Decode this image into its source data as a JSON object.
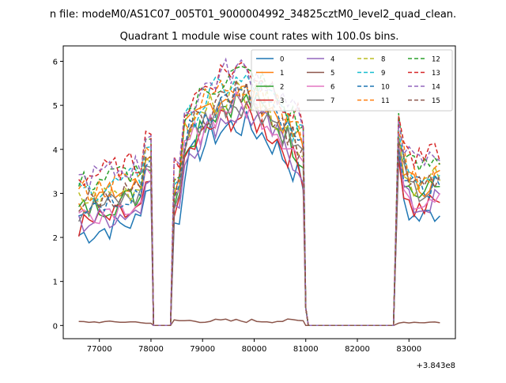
{
  "chart_data": {
    "type": "line",
    "suptitle": "n file: modeM0/AS1C07_005T01_9000004992_34825cztM0_level2_quad_clean.",
    "title": "Quadrant 1 module wise count rates with 100.0s bins.",
    "xlabel": "",
    "ylabel": "",
    "x_offset_label": "+3.843e8",
    "xlim": [
      76300,
      83900
    ],
    "ylim": [
      -0.3,
      6.35
    ],
    "xticks": [
      77000,
      78000,
      79000,
      80000,
      81000,
      82000,
      83000
    ],
    "xtick_labels": [
      "77000",
      "78000",
      "79000",
      "80000",
      "81000",
      "82000",
      "83000"
    ],
    "yticks": [
      0,
      1,
      2,
      3,
      4,
      5,
      6
    ],
    "ytick_labels": [
      "0",
      "1",
      "2",
      "3",
      "4",
      "5",
      "6"
    ],
    "grid": false,
    "legend_position": "top-right",
    "series": [
      {
        "name": "0",
        "color": "#1f77b4",
        "dash": "solid",
        "level": 2.05,
        "low": 0.0
      },
      {
        "name": "1",
        "color": "#ff7f0e",
        "dash": "solid",
        "level": 2.8,
        "low": 0.0
      },
      {
        "name": "2",
        "color": "#2ca02c",
        "dash": "solid",
        "level": 2.6,
        "low": 0.0
      },
      {
        "name": "3",
        "color": "#d62728",
        "dash": "solid",
        "level": 2.25,
        "low": 0.0
      },
      {
        "name": "4",
        "color": "#9467bd",
        "dash": "solid",
        "level": 2.3,
        "low": 0.0
      },
      {
        "name": "5",
        "color": "#8c564b",
        "dash": "solid",
        "level": 0.07,
        "low": 0.0,
        "flat": true
      },
      {
        "name": "6",
        "color": "#e377c2",
        "dash": "solid",
        "level": 2.5,
        "low": 0.0
      },
      {
        "name": "7",
        "color": "#7f7f7f",
        "dash": "solid",
        "level": 2.6,
        "low": 0.0
      },
      {
        "name": "8",
        "color": "#bcbd22",
        "dash": "dashed",
        "level": 2.8,
        "low": 0.0
      },
      {
        "name": "9",
        "color": "#17becf",
        "dash": "dashed",
        "level": 3.0,
        "low": 0.0
      },
      {
        "name": "10",
        "color": "#1f77b4",
        "dash": "dashed",
        "level": 2.7,
        "low": 0.0
      },
      {
        "name": "11",
        "color": "#ff7f0e",
        "dash": "dashed",
        "level": 3.0,
        "low": 0.0
      },
      {
        "name": "12",
        "color": "#2ca02c",
        "dash": "dashed",
        "level": 3.2,
        "low": 0.0
      },
      {
        "name": "13",
        "color": "#d62728",
        "dash": "dashed",
        "level": 3.35,
        "low": 0.0
      },
      {
        "name": "14",
        "color": "#9467bd",
        "dash": "dashed",
        "level": 3.3,
        "low": 0.0
      },
      {
        "name": "15",
        "color": "#8c564b",
        "dash": "dashed",
        "level": 2.75,
        "low": 0.0
      }
    ],
    "time_segments": [
      {
        "start": 76600,
        "end": 78000,
        "shape": "low-flat"
      },
      {
        "start": 78400,
        "end": 81000,
        "shape": "hump"
      },
      {
        "start": 82800,
        "end": 83600,
        "shape": "spike-decay"
      }
    ]
  }
}
